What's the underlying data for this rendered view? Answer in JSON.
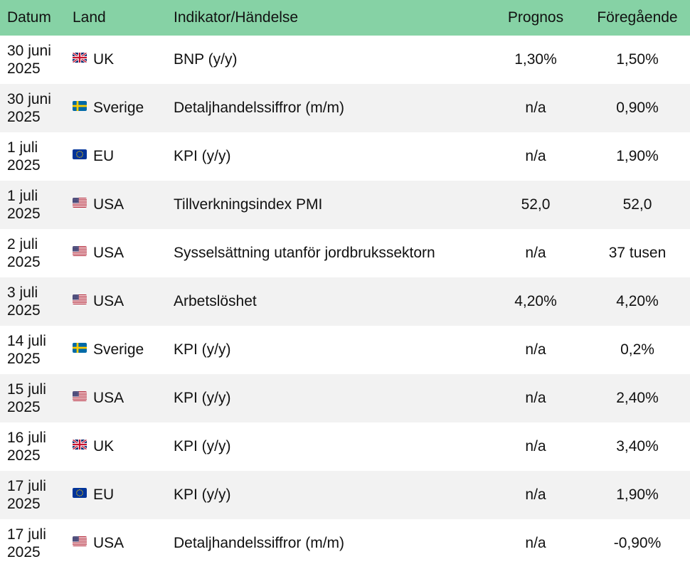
{
  "headers": {
    "date": "Datum",
    "country": "Land",
    "indicator": "Indikator/Händelse",
    "forecast": "Prognos",
    "previous": "Föregående"
  },
  "rows": [
    {
      "date_l1": "30 juni",
      "date_l2": "2025",
      "flag": "uk-flag-icon",
      "country": "UK",
      "indicator": "BNP (y/y)",
      "forecast": "1,30%",
      "previous": "1,50%"
    },
    {
      "date_l1": "30 juni",
      "date_l2": "2025",
      "flag": "sweden-flag-icon",
      "country": "Sverige",
      "indicator": "Detaljhandelssiffror  (m/m)",
      "forecast": "n/a",
      "previous": "0,90%"
    },
    {
      "date_l1": "1 juli",
      "date_l2": "2025",
      "flag": "eu-flag-icon",
      "country": "EU",
      "indicator": "KPI (y/y)",
      "forecast": "n/a",
      "previous": "1,90%"
    },
    {
      "date_l1": "1 juli",
      "date_l2": "2025",
      "flag": "usa-flag-icon",
      "country": "USA",
      "indicator": "Tillverkningsindex PMI",
      "forecast": "52,0",
      "previous": "52,0"
    },
    {
      "date_l1": "2 juli",
      "date_l2": "2025",
      "flag": "usa-flag-icon",
      "country": "USA",
      "indicator": "Sysselsättning utanför jordbrukssektorn",
      "forecast": "n/a",
      "previous": "37 tusen"
    },
    {
      "date_l1": "3 juli",
      "date_l2": "2025",
      "flag": "usa-flag-icon",
      "country": "USA",
      "indicator": "Arbetslöshet",
      "forecast": "4,20%",
      "previous": "4,20%"
    },
    {
      "date_l1": "14 juli",
      "date_l2": "2025",
      "flag": "sweden-flag-icon",
      "country": "Sverige",
      "indicator": "KPI (y/y)",
      "forecast": "n/a",
      "previous": "0,2%"
    },
    {
      "date_l1": "15 juli",
      "date_l2": "2025",
      "flag": "usa-flag-icon",
      "country": "USA",
      "indicator": "KPI (y/y)",
      "forecast": "n/a",
      "previous": "2,40%"
    },
    {
      "date_l1": "16 juli",
      "date_l2": "2025",
      "flag": "uk-flag-icon",
      "country": "UK",
      "indicator": "KPI (y/y)",
      "forecast": "n/a",
      "previous": "3,40%"
    },
    {
      "date_l1": "17 juli",
      "date_l2": "2025",
      "flag": "eu-flag-icon",
      "country": "EU",
      "indicator": "KPI (y/y)",
      "forecast": "n/a",
      "previous": "1,90%"
    },
    {
      "date_l1": "17 juli",
      "date_l2": "2025",
      "flag": "usa-flag-icon",
      "country": "USA",
      "indicator": "Detaljhandelssiffror  (m/m)",
      "forecast": "n/a",
      "previous": "-0,90%"
    }
  ],
  "colors": {
    "header_bg": "#86d2a5",
    "row_alt_bg": "#f2f2f2"
  }
}
